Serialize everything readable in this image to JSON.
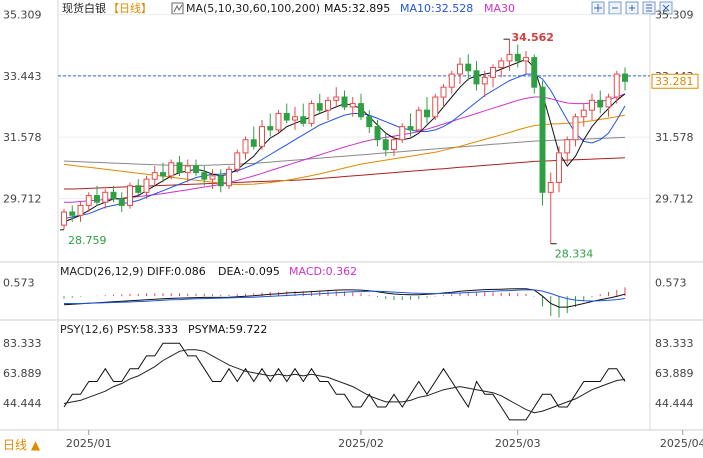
{
  "header": {
    "symbol": "现货白银",
    "period": "【日线】",
    "ma_label": "MA(5,10,30,60,100,200)",
    "ma5": "MA5:32.895",
    "ma10": "MA10:32.528",
    "ma30": "MA30",
    "icons": [
      "crosshair-icon",
      "minus-icon",
      "plus-icon",
      "settings-icon",
      "close-icon"
    ]
  },
  "macd": {
    "title": "MACD(26,12,9)",
    "diff": "DIFF:0.086",
    "dea": "DEA:-0.095",
    "macd": "MACD:0.362"
  },
  "psy": {
    "title": "PSY(12,6)",
    "psy": "PSY:58.333",
    "psyma": "PSYMA:59.722"
  },
  "footer": {
    "period_button": "日线 ▲"
  },
  "colors": {
    "up": "#e84a4a",
    "down": "#2ea043",
    "ma5": "#111111",
    "ma10": "#2255dd",
    "ma30": "#cc33cc",
    "ma60": "#e08a00",
    "ma100": "#888888",
    "ma200": "#aa2222",
    "price_line": "#3366cc"
  },
  "chart_data": [
    {
      "type": "candlestick",
      "panel": "price",
      "y_ticks": [
        "35.309",
        "33.443",
        "31.578",
        "29.712"
      ],
      "y_tick_values": [
        35.309,
        33.443,
        31.578,
        29.712
      ],
      "ylim": [
        27.9,
        35.45
      ],
      "current_price": "33.281",
      "current_price_value": 33.281,
      "high_annotation": "34.562",
      "high_value": 34.562,
      "low_annotation": "28.334",
      "low_value": 28.334,
      "start_annotation": "28.759",
      "start_value": 28.759,
      "x_labels": [
        "2025/01",
        "2025/02",
        "2025/03",
        "2025/04"
      ],
      "x_label_index": [
        3,
        36,
        55,
        75
      ],
      "ohlc": [
        [
          28.9,
          29.4,
          28.76,
          29.3
        ],
        [
          29.3,
          29.5,
          29.0,
          29.2
        ],
        [
          29.2,
          29.6,
          29.0,
          29.5
        ],
        [
          29.5,
          29.9,
          29.3,
          29.8
        ],
        [
          29.8,
          30.1,
          29.5,
          29.6
        ],
        [
          29.6,
          30.0,
          29.4,
          29.9
        ],
        [
          29.9,
          30.1,
          29.6,
          29.7
        ],
        [
          29.7,
          29.9,
          29.3,
          29.5
        ],
        [
          29.5,
          30.2,
          29.4,
          30.1
        ],
        [
          30.1,
          30.3,
          29.8,
          29.9
        ],
        [
          29.9,
          30.4,
          29.7,
          30.3
        ],
        [
          30.3,
          30.7,
          30.1,
          30.5
        ],
        [
          30.5,
          30.8,
          30.2,
          30.4
        ],
        [
          30.4,
          30.9,
          30.3,
          30.8
        ],
        [
          30.8,
          31.0,
          30.4,
          30.5
        ],
        [
          30.5,
          30.9,
          30.2,
          30.7
        ],
        [
          30.7,
          30.9,
          30.4,
          30.5
        ],
        [
          30.5,
          30.7,
          30.1,
          30.3
        ],
        [
          30.3,
          30.6,
          30.0,
          30.4
        ],
        [
          30.4,
          30.6,
          29.9,
          30.1
        ],
        [
          30.1,
          30.7,
          30.0,
          30.6
        ],
        [
          30.6,
          31.2,
          30.5,
          31.1
        ],
        [
          31.1,
          31.6,
          30.9,
          31.5
        ],
        [
          31.5,
          31.9,
          31.2,
          31.3
        ],
        [
          31.3,
          32.1,
          31.2,
          31.9
        ],
        [
          31.9,
          32.3,
          31.6,
          31.8
        ],
        [
          31.8,
          32.4,
          31.7,
          32.3
        ],
        [
          32.3,
          32.6,
          32.0,
          32.1
        ],
        [
          32.1,
          32.5,
          31.8,
          32.2
        ],
        [
          32.2,
          32.6,
          31.9,
          32.0
        ],
        [
          32.0,
          32.7,
          31.9,
          32.6
        ],
        [
          32.6,
          32.9,
          32.3,
          32.4
        ],
        [
          32.4,
          32.8,
          32.1,
          32.7
        ],
        [
          32.7,
          33.1,
          32.5,
          32.8
        ],
        [
          32.8,
          33.0,
          32.4,
          32.5
        ],
        [
          32.5,
          32.8,
          32.2,
          32.6
        ],
        [
          32.6,
          32.9,
          32.1,
          32.2
        ],
        [
          32.2,
          32.4,
          31.7,
          31.9
        ],
        [
          31.9,
          32.1,
          31.3,
          31.5
        ],
        [
          31.5,
          31.7,
          31.0,
          31.2
        ],
        [
          31.2,
          31.6,
          31.0,
          31.5
        ],
        [
          31.5,
          32.0,
          31.4,
          31.9
        ],
        [
          31.9,
          32.3,
          31.6,
          31.8
        ],
        [
          31.8,
          32.5,
          31.7,
          32.4
        ],
        [
          32.4,
          32.8,
          32.0,
          32.2
        ],
        [
          32.2,
          32.9,
          32.1,
          32.8
        ],
        [
          32.8,
          33.2,
          32.5,
          33.1
        ],
        [
          33.1,
          33.6,
          32.9,
          33.5
        ],
        [
          33.5,
          34.0,
          33.2,
          33.8
        ],
        [
          33.8,
          34.1,
          33.3,
          33.6
        ],
        [
          33.6,
          33.9,
          33.0,
          33.2
        ],
        [
          33.2,
          33.6,
          32.8,
          33.4
        ],
        [
          33.4,
          33.8,
          33.1,
          33.7
        ],
        [
          33.7,
          34.0,
          33.4,
          33.9
        ],
        [
          33.9,
          34.56,
          33.6,
          34.1
        ],
        [
          34.1,
          34.4,
          33.7,
          33.9
        ],
        [
          33.9,
          34.2,
          33.5,
          34.0
        ],
        [
          34.0,
          34.1,
          32.9,
          33.1
        ],
        [
          33.1,
          33.3,
          29.5,
          29.9
        ],
        [
          29.9,
          30.5,
          28.33,
          30.2
        ],
        [
          30.2,
          31.3,
          29.9,
          31.1
        ],
        [
          31.1,
          31.6,
          30.8,
          31.5
        ],
        [
          31.5,
          32.3,
          31.3,
          32.2
        ],
        [
          32.2,
          32.6,
          31.9,
          32.4
        ],
        [
          32.4,
          32.9,
          32.1,
          32.7
        ],
        [
          32.7,
          33.0,
          32.3,
          32.5
        ],
        [
          32.5,
          32.9,
          32.2,
          32.8
        ],
        [
          32.8,
          33.6,
          32.6,
          33.5
        ],
        [
          33.5,
          33.7,
          33.0,
          33.28
        ]
      ],
      "ma5": [
        29.0,
        29.1,
        29.2,
        29.35,
        29.5,
        29.6,
        29.7,
        29.7,
        29.75,
        29.8,
        29.95,
        30.1,
        30.25,
        30.4,
        30.5,
        30.55,
        30.6,
        30.55,
        30.45,
        30.4,
        30.45,
        30.6,
        30.8,
        31.0,
        31.3,
        31.55,
        31.7,
        31.9,
        32.0,
        32.1,
        32.2,
        32.3,
        32.4,
        32.5,
        32.6,
        32.55,
        32.45,
        32.2,
        31.95,
        31.7,
        31.55,
        31.5,
        31.55,
        31.7,
        31.95,
        32.2,
        32.5,
        32.8,
        33.1,
        33.35,
        33.45,
        33.5,
        33.55,
        33.65,
        33.75,
        33.85,
        33.95,
        33.7,
        32.9,
        32.0,
        31.1,
        30.7,
        31.0,
        31.5,
        31.9,
        32.2,
        32.45,
        32.7,
        32.9
      ],
      "ma10": [
        29.1,
        29.15,
        29.2,
        29.25,
        29.35,
        29.45,
        29.5,
        29.55,
        29.6,
        29.65,
        29.75,
        29.85,
        29.95,
        30.05,
        30.15,
        30.25,
        30.35,
        30.4,
        30.45,
        30.45,
        30.5,
        30.55,
        30.65,
        30.75,
        30.9,
        31.05,
        31.2,
        31.35,
        31.5,
        31.65,
        31.8,
        31.95,
        32.05,
        32.15,
        32.25,
        32.3,
        32.3,
        32.25,
        32.15,
        32.05,
        31.95,
        31.85,
        31.8,
        31.75,
        31.75,
        31.8,
        31.9,
        32.05,
        32.25,
        32.45,
        32.65,
        32.85,
        33.0,
        33.15,
        33.3,
        33.4,
        33.5,
        33.5,
        33.35,
        33.0,
        32.55,
        32.1,
        31.7,
        31.45,
        31.4,
        31.5,
        31.7,
        32.1,
        32.53
      ],
      "ma30": [
        29.6,
        29.6,
        29.62,
        29.64,
        29.66,
        29.68,
        29.7,
        29.72,
        29.74,
        29.77,
        29.8,
        29.83,
        29.86,
        29.9,
        29.94,
        29.98,
        30.02,
        30.06,
        30.1,
        30.14,
        30.2,
        30.26,
        30.33,
        30.4,
        30.48,
        30.56,
        30.64,
        30.72,
        30.8,
        30.88,
        30.96,
        31.04,
        31.12,
        31.2,
        31.28,
        31.35,
        31.42,
        31.48,
        31.53,
        31.57,
        31.61,
        31.65,
        31.7,
        31.75,
        31.82,
        31.9,
        31.98,
        32.06,
        32.14,
        32.22,
        32.3,
        32.38,
        32.46,
        32.54,
        32.62,
        32.7,
        32.76,
        32.8,
        32.8,
        32.75,
        32.68,
        32.62,
        32.6,
        32.6,
        32.62,
        32.66,
        32.72,
        32.8,
        32.9
      ],
      "ma60": [
        30.75,
        30.72,
        30.69,
        30.66,
        30.63,
        30.6,
        30.57,
        30.54,
        30.51,
        30.48,
        30.45,
        30.42,
        30.39,
        30.36,
        30.33,
        30.3,
        30.27,
        30.24,
        30.21,
        30.18,
        30.15,
        30.14,
        30.14,
        30.15,
        30.17,
        30.2,
        30.23,
        30.27,
        30.31,
        30.36,
        30.41,
        30.46,
        30.52,
        30.58,
        30.64,
        30.7,
        30.76,
        30.8,
        30.84,
        30.88,
        30.92,
        30.96,
        31.0,
        31.04,
        31.08,
        31.12,
        31.18,
        31.24,
        31.3,
        31.37,
        31.44,
        31.51,
        31.58,
        31.65,
        31.72,
        31.8,
        31.87,
        31.93,
        31.96,
        31.98,
        31.99,
        32.0,
        32.02,
        32.05,
        32.08,
        32.12,
        32.16,
        32.2,
        32.25
      ],
      "ma100": [
        30.85,
        30.84,
        30.83,
        30.82,
        30.81,
        30.8,
        30.79,
        30.78,
        30.77,
        30.76,
        30.75,
        30.74,
        30.73,
        30.72,
        30.72,
        30.72,
        30.72,
        30.72,
        30.73,
        30.74,
        30.75,
        30.76,
        30.77,
        30.78,
        30.8,
        30.82,
        30.84,
        30.86,
        30.88,
        30.9,
        30.92,
        30.94,
        30.96,
        30.98,
        31.0,
        31.02,
        31.04,
        31.06,
        31.08,
        31.1,
        31.12,
        31.14,
        31.16,
        31.18,
        31.2,
        31.22,
        31.24,
        31.26,
        31.28,
        31.3,
        31.32,
        31.34,
        31.36,
        31.38,
        31.4,
        31.42,
        31.44,
        31.46,
        31.47,
        31.48,
        31.49,
        31.5,
        31.51,
        31.52,
        31.53,
        31.54,
        31.55,
        31.56,
        31.57
      ],
      "ma200": [
        30.0,
        30.0,
        30.01,
        30.02,
        30.03,
        30.04,
        30.05,
        30.06,
        30.07,
        30.08,
        30.09,
        30.1,
        30.11,
        30.12,
        30.13,
        30.14,
        30.15,
        30.16,
        30.17,
        30.18,
        30.19,
        30.2,
        30.21,
        30.22,
        30.23,
        30.24,
        30.25,
        30.26,
        30.27,
        30.28,
        30.3,
        30.32,
        30.34,
        30.36,
        30.38,
        30.4,
        30.42,
        30.44,
        30.46,
        30.48,
        30.5,
        30.52,
        30.54,
        30.56,
        30.58,
        30.6,
        30.62,
        30.64,
        30.66,
        30.68,
        30.7,
        30.72,
        30.74,
        30.76,
        30.78,
        30.8,
        30.82,
        30.84,
        30.85,
        30.86,
        30.87,
        30.88,
        30.89,
        30.9,
        30.91,
        30.92,
        30.93,
        30.94,
        30.95
      ]
    },
    {
      "type": "macd",
      "panel": "macd",
      "y_tick": "0.573",
      "y_tick_value": 0.573,
      "ylim": [
        -0.9,
        0.75
      ],
      "diff": [
        -0.35,
        -0.33,
        -0.31,
        -0.29,
        -0.27,
        -0.25,
        -0.23,
        -0.21,
        -0.19,
        -0.17,
        -0.15,
        -0.13,
        -0.11,
        -0.09,
        -0.08,
        -0.07,
        -0.06,
        -0.05,
        -0.05,
        -0.05,
        -0.04,
        -0.02,
        0.0,
        0.02,
        0.05,
        0.08,
        0.1,
        0.13,
        0.15,
        0.17,
        0.19,
        0.21,
        0.23,
        0.25,
        0.26,
        0.26,
        0.25,
        0.22,
        0.18,
        0.13,
        0.09,
        0.07,
        0.06,
        0.06,
        0.08,
        0.1,
        0.13,
        0.16,
        0.2,
        0.23,
        0.25,
        0.27,
        0.28,
        0.29,
        0.3,
        0.31,
        0.31,
        0.25,
        0.0,
        -0.3,
        -0.45,
        -0.45,
        -0.38,
        -0.3,
        -0.22,
        -0.15,
        -0.08,
        -0.01,
        0.086
      ],
      "dea": [
        -0.3,
        -0.3,
        -0.3,
        -0.29,
        -0.28,
        -0.27,
        -0.26,
        -0.25,
        -0.24,
        -0.22,
        -0.21,
        -0.19,
        -0.17,
        -0.15,
        -0.14,
        -0.12,
        -0.11,
        -0.1,
        -0.09,
        -0.08,
        -0.07,
        -0.06,
        -0.05,
        -0.04,
        -0.02,
        -0.01,
        0.01,
        0.03,
        0.05,
        0.07,
        0.08,
        0.1,
        0.12,
        0.14,
        0.16,
        0.18,
        0.19,
        0.2,
        0.2,
        0.19,
        0.17,
        0.15,
        0.13,
        0.12,
        0.11,
        0.11,
        0.11,
        0.12,
        0.13,
        0.15,
        0.17,
        0.19,
        0.2,
        0.22,
        0.23,
        0.25,
        0.26,
        0.26,
        0.21,
        0.11,
        -0.01,
        -0.1,
        -0.16,
        -0.19,
        -0.2,
        -0.19,
        -0.17,
        -0.14,
        -0.095
      ],
      "macd": [
        -0.1,
        -0.06,
        -0.02,
        0.0,
        0.02,
        0.04,
        0.06,
        0.08,
        0.1,
        0.1,
        0.12,
        0.12,
        0.12,
        0.12,
        0.12,
        0.1,
        0.1,
        0.1,
        0.08,
        0.06,
        0.06,
        0.08,
        0.1,
        0.12,
        0.14,
        0.18,
        0.18,
        0.2,
        0.2,
        0.2,
        0.22,
        0.22,
        0.22,
        0.22,
        0.2,
        0.16,
        0.12,
        0.04,
        -0.04,
        -0.12,
        -0.16,
        -0.16,
        -0.14,
        -0.12,
        -0.06,
        -0.02,
        0.04,
        0.08,
        0.14,
        0.16,
        0.16,
        0.16,
        0.16,
        0.14,
        0.14,
        0.12,
        0.1,
        -0.02,
        -0.42,
        -0.82,
        -0.88,
        -0.7,
        -0.44,
        -0.22,
        -0.04,
        0.08,
        0.18,
        0.26,
        0.362
      ]
    },
    {
      "type": "line",
      "panel": "psy",
      "y_ticks": [
        "83.333",
        "63.889",
        "44.444"
      ],
      "y_tick_values": [
        83.333,
        63.889,
        44.444
      ],
      "ylim": [
        28,
        88
      ],
      "psy": [
        41.7,
        50.0,
        50.0,
        58.3,
        58.3,
        66.7,
        58.3,
        58.3,
        66.7,
        66.7,
        75.0,
        75.0,
        83.3,
        83.3,
        83.3,
        75.0,
        75.0,
        66.7,
        58.3,
        58.3,
        66.7,
        58.3,
        66.7,
        58.3,
        66.7,
        58.3,
        66.7,
        58.3,
        66.7,
        58.3,
        66.7,
        58.3,
        58.3,
        50.0,
        50.0,
        41.7,
        41.7,
        50.0,
        41.7,
        41.7,
        50.0,
        41.7,
        50.0,
        58.3,
        50.0,
        58.3,
        66.7,
        58.3,
        50.0,
        41.7,
        58.3,
        50.0,
        50.0,
        41.7,
        33.3,
        33.3,
        33.3,
        41.7,
        50.0,
        50.0,
        41.7,
        41.7,
        50.0,
        58.3,
        58.3,
        58.3,
        66.7,
        66.7,
        58.333
      ],
      "psyma": [
        44.0,
        45.0,
        46.0,
        48.0,
        50.0,
        52.0,
        55.0,
        57.0,
        60.0,
        62.0,
        65.0,
        68.0,
        72.0,
        75.0,
        78.0,
        79.0,
        79.0,
        78.0,
        75.0,
        72.0,
        69.0,
        67.0,
        65.0,
        64.0,
        63.0,
        62.0,
        63.0,
        62.0,
        63.0,
        62.0,
        63.0,
        62.0,
        61.0,
        59.0,
        57.0,
        55.0,
        52.0,
        49.0,
        47.0,
        45.0,
        45.0,
        45.0,
        46.0,
        48.0,
        49.0,
        51.0,
        53.0,
        54.0,
        55.0,
        54.0,
        53.0,
        52.0,
        51.0,
        49.0,
        46.0,
        43.0,
        40.0,
        38.0,
        39.0,
        41.0,
        43.0,
        45.0,
        47.0,
        50.0,
        53.0,
        55.0,
        57.0,
        59.0,
        59.722
      ]
    }
  ]
}
